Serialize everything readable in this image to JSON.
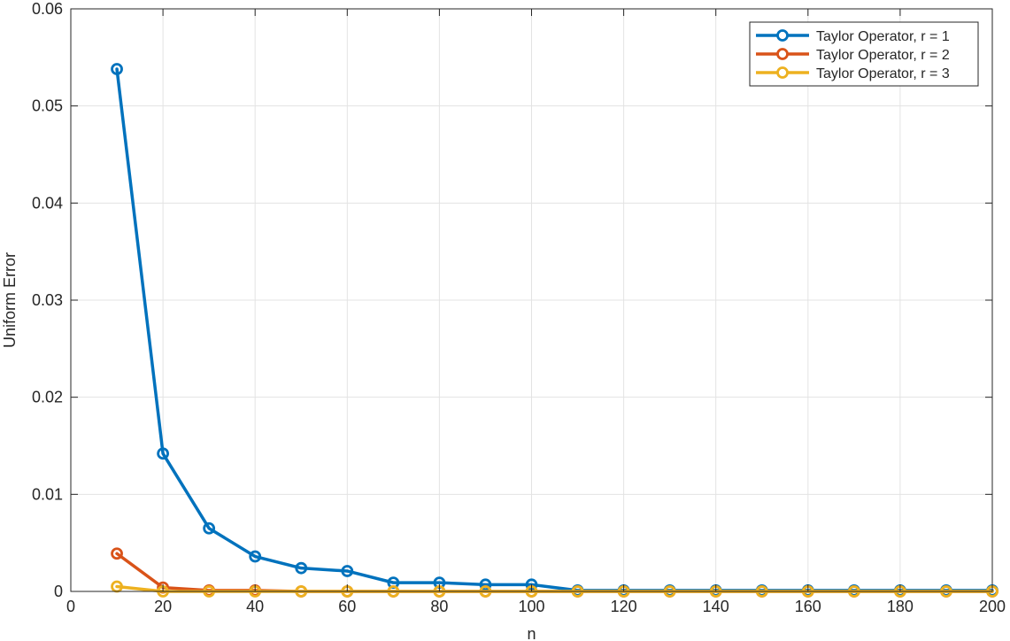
{
  "chart_data": {
    "type": "line",
    "xlabel": "n",
    "ylabel": "Uniform Error",
    "xlim": [
      0,
      200
    ],
    "ylim": [
      0,
      0.06
    ],
    "x_ticks": [
      0,
      20,
      40,
      60,
      80,
      100,
      120,
      140,
      160,
      180,
      200
    ],
    "x_tick_labels": [
      "0",
      "20",
      "40",
      "60",
      "80",
      "100",
      "120",
      "140",
      "160",
      "180",
      "200"
    ],
    "y_ticks": [
      0,
      0.01,
      0.02,
      0.03,
      0.04,
      0.05,
      0.06
    ],
    "y_tick_labels": [
      "0",
      "0.01",
      "0.02",
      "0.03",
      "0.04",
      "0.05",
      "0.06"
    ],
    "grid": true,
    "legend_position": "top-right",
    "marker": "circle",
    "x": [
      10,
      20,
      30,
      40,
      50,
      60,
      70,
      80,
      90,
      100,
      110,
      120,
      130,
      140,
      150,
      160,
      170,
      180,
      190,
      200
    ],
    "series": [
      {
        "name": "Taylor Operator, r = 1",
        "color": "#0072BD",
        "values": [
          0.0538,
          0.0142,
          0.0065,
          0.0036,
          0.0024,
          0.0021,
          0.0009,
          0.0009,
          0.0007,
          0.0007,
          0.0001,
          0.0001,
          0.0001,
          0.0001,
          0.0001,
          0.0001,
          0.0001,
          0.0001,
          0.0001,
          0.0001
        ]
      },
      {
        "name": "Taylor Operator, r = 2",
        "color": "#D95319",
        "values": [
          0.0039,
          0.0004,
          0.0001,
          0.0001,
          0.0,
          0.0,
          0.0,
          0.0,
          0.0,
          0.0,
          0.0,
          0.0,
          0.0,
          0.0,
          0.0,
          0.0,
          0.0,
          0.0,
          0.0,
          0.0
        ]
      },
      {
        "name": "Taylor Operator, r = 3",
        "color": "#EDB120",
        "values": [
          0.0005,
          0.0,
          0.0,
          0.0,
          0.0,
          0.0,
          0.0,
          0.0,
          0.0,
          0.0,
          0.0,
          0.0,
          0.0,
          0.0,
          0.0,
          0.0,
          0.0,
          0.0,
          0.0,
          0.0
        ]
      }
    ]
  }
}
